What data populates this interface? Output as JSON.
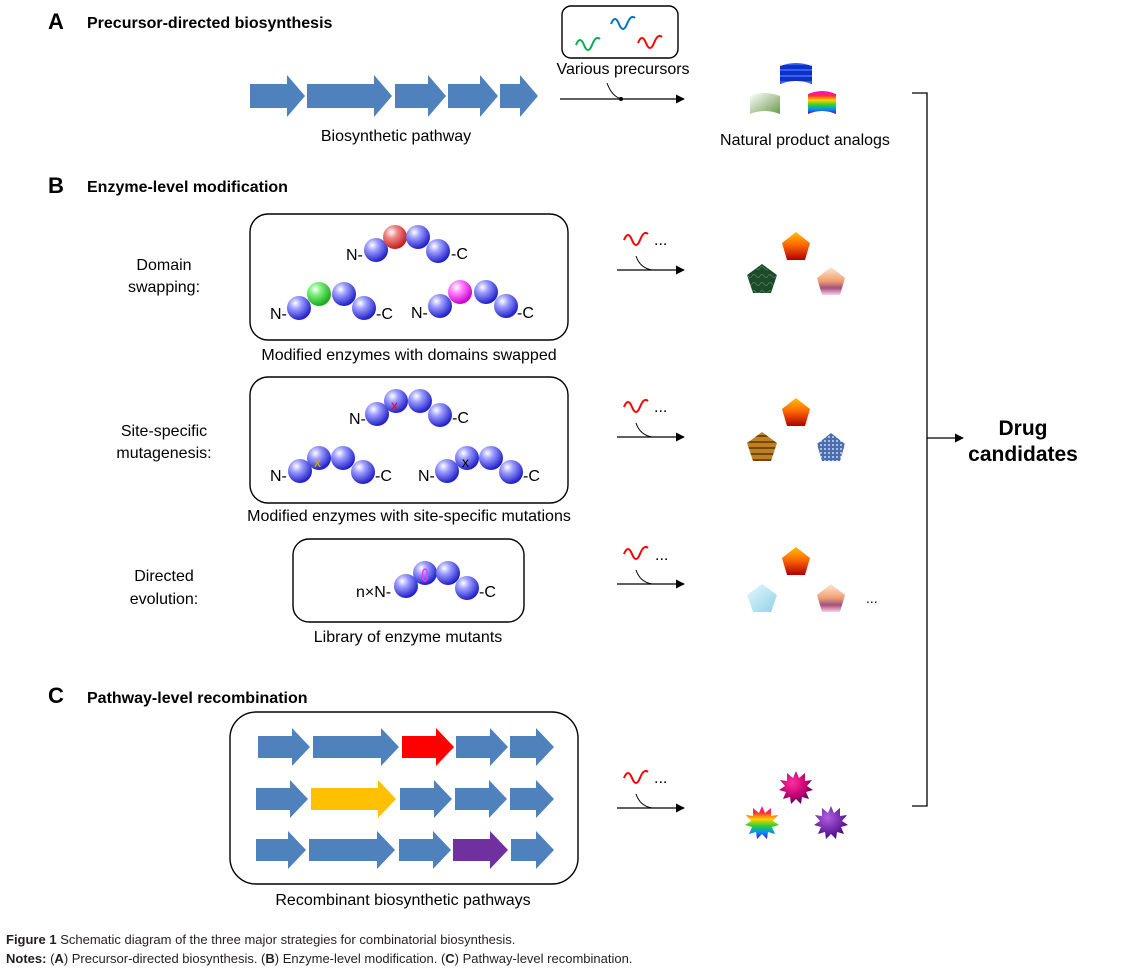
{
  "sections": {
    "a": {
      "letter": "A",
      "title": "Precursor-directed biosynthesis",
      "pathway_label": "Biosynthetic pathway",
      "precursors_label": "Various precursors",
      "products_label": "Natural product analogs"
    },
    "b": {
      "letter": "B",
      "title": "Enzyme-level modification",
      "rows": [
        {
          "method_line1": "Domain",
          "method_line2": "swapping:",
          "caption": "Modified enzymes with domains swapped"
        },
        {
          "method_line1": "Site-specific",
          "method_line2": "mutagenesis:",
          "caption": "Modified enzymes with site-specific mutations"
        },
        {
          "method_line1": "Directed",
          "method_line2": "evolution:",
          "caption": "Library of enzyme mutants"
        }
      ]
    },
    "c": {
      "letter": "C",
      "title": "Pathway-level recombination",
      "caption": "Recombinant biosynthetic pathways"
    }
  },
  "terminal_labels": {
    "n": "N-",
    "c": "-C",
    "nx_n": "n×N-",
    "mutation_mark": "x"
  },
  "ellipsis": "...",
  "outcome": {
    "line1": "Drug",
    "line2": "candidates"
  },
  "figure_caption": {
    "label": "Figure 1",
    "text": "Schematic diagram of the three major strategies for combinatorial biosynthesis."
  },
  "notes": {
    "label": "Notes:",
    "open_a": "(",
    "a_letter": "A",
    "a_text": ") Precursor-directed biosynthesis. (",
    "b_letter": "B",
    "b_text": ") Enzyme-level modification. (",
    "c_letter": "C",
    "c_text": ") Pathway-level recombination."
  },
  "colors": {
    "pathway_arrow": "#4f81bd",
    "swapped_red": "#ff0000",
    "swapped_yellow": "#ffc000",
    "swapped_purple": "#7030a0",
    "domain_blue": "#5b5bff",
    "domain_red": "#e83a3a",
    "domain_green": "#3ae83a",
    "domain_magenta": "#ff33ff",
    "precursor_blue": "#0070c0",
    "precursor_green": "#00b050",
    "precursor_red": "#ff0000"
  }
}
